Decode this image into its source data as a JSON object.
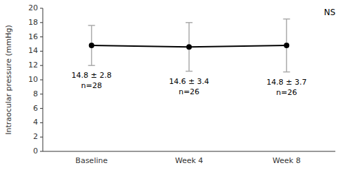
{
  "chart_data": {
    "type": "line",
    "categories": [
      "Baseline",
      "Week 4",
      "Week 8"
    ],
    "values": [
      14.8,
      14.6,
      14.8
    ],
    "errors": [
      2.8,
      3.4,
      3.7
    ],
    "color": "#000000",
    "marker": "circle",
    "ylabel": "Intraocular pressure (mmHg)",
    "ylim": [
      0,
      20
    ],
    "yticks": [
      0,
      2,
      4,
      6,
      8,
      10,
      12,
      14,
      16,
      18,
      20
    ],
    "grid": false,
    "annotations": [
      {
        "text": "14.8 ± 2.8\nn=28",
        "x": "Baseline"
      },
      {
        "text": "14.6 ± 3.4\nn=26",
        "x": "Week 4"
      },
      {
        "text": "14.8 ± 3.7\nn=26",
        "x": "Week 8"
      },
      {
        "text": "NS"
      }
    ]
  }
}
